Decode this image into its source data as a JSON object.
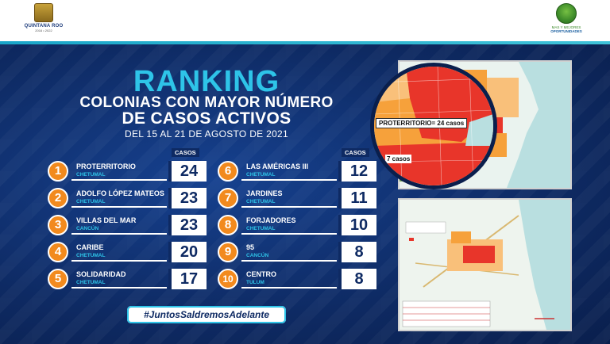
{
  "header": {
    "left_logo_name": "QUINTANA ROO",
    "left_logo_years": "2016 • 2022",
    "right_logo_line1": "MAS Y MEJORES",
    "right_logo_line2": "OPORTUNIDADES"
  },
  "title": {
    "main": "RANKING",
    "line2": "COLONIAS CON MAYOR NÚMERO",
    "line3": "DE CASOS ACTIVOS",
    "dates": "DEL 15 AL 21 DE AGOSTO DE 2021"
  },
  "casos_label": "CASOS",
  "ranking": [
    {
      "rank": "1",
      "name": "PROTERRITORIO",
      "city": "CHETUMAL",
      "cases": "24"
    },
    {
      "rank": "2",
      "name": "ADOLFO LÓPEZ MATEOS",
      "city": "CHETUMAL",
      "cases": "23"
    },
    {
      "rank": "3",
      "name": "VILLAS DEL MAR",
      "city": "CANCÚN",
      "cases": "23"
    },
    {
      "rank": "4",
      "name": "CARIBE",
      "city": "CHETUMAL",
      "cases": "20"
    },
    {
      "rank": "5",
      "name": "SOLIDARIDAD",
      "city": "CHETUMAL",
      "cases": "17"
    },
    {
      "rank": "6",
      "name": "LAS AMÉRICAS III",
      "city": "CHETUMAL",
      "cases": "12"
    },
    {
      "rank": "7",
      "name": "JARDINES",
      "city": "CHETUMAL",
      "cases": "11"
    },
    {
      "rank": "8",
      "name": "FORJADORES",
      "city": "CHETUMAL",
      "cases": "10"
    },
    {
      "rank": "9",
      "name": "95",
      "city": "CANCÚN",
      "cases": "8"
    },
    {
      "rank": "10",
      "name": "CENTRO",
      "city": "TULUM",
      "cases": "8"
    }
  ],
  "hashtag": "#JuntosSaldremosAdelante",
  "map_callout": "PROTERRITORIO= 24 casos",
  "map_callout2": "7 casos",
  "colors": {
    "background": "#0e2a63",
    "title_cyan": "#2ec4e8",
    "badge_orange": "#f28a1e",
    "map_red": "#e8352a",
    "map_orange": "#f6a13b"
  }
}
